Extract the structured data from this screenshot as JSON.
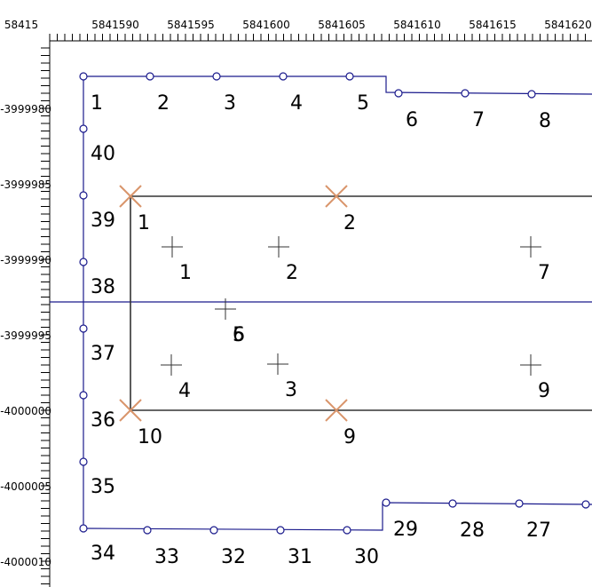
{
  "ruler": {
    "x_labels": [
      "58415",
      "5841590",
      "5841595",
      "5841600",
      "5841605",
      "5841610",
      "5841615",
      "5841620"
    ],
    "y_labels": [
      "-3999980",
      "-3999985",
      "-3999990",
      "-3999995",
      "-4000000",
      "-4000005",
      "-4000010"
    ]
  },
  "boundary_points": [
    "1",
    "2",
    "3",
    "4",
    "5",
    "6",
    "7",
    "8",
    "40",
    "39",
    "38",
    "37",
    "36",
    "35",
    "34",
    "33",
    "32",
    "31",
    "30",
    "29",
    "28",
    "27"
  ],
  "corner_markers": [
    "1",
    "2",
    "10",
    "9"
  ],
  "cross_markers": [
    "1",
    "2",
    "7",
    "5",
    "6",
    "4",
    "3",
    "9"
  ]
}
